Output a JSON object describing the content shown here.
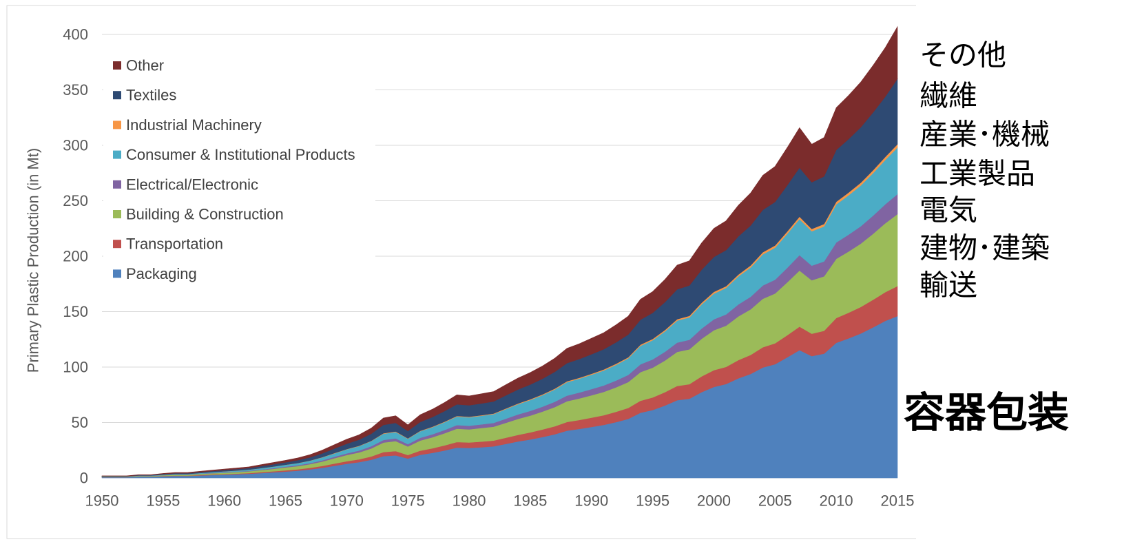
{
  "chart_data": {
    "type": "area",
    "stacked": true,
    "ylabel": "Primary Plastic Production (in Mt)",
    "xlim": [
      1950,
      2015
    ],
    "ylim": [
      0,
      400
    ],
    "grid": true,
    "legend": "top-left",
    "x_tick_labels": [
      "1950",
      "1955",
      "1960",
      "1965",
      "1970",
      "1975",
      "1980",
      "1985",
      "1990",
      "1995",
      "2000",
      "2005",
      "2010",
      "2015"
    ],
    "y_tick_labels": [
      "0",
      "50",
      "100",
      "150",
      "200",
      "250",
      "300",
      "350",
      "400"
    ],
    "x": [
      1950,
      1951,
      1952,
      1953,
      1954,
      1955,
      1956,
      1957,
      1958,
      1959,
      1960,
      1961,
      1962,
      1963,
      1964,
      1965,
      1966,
      1967,
      1968,
      1969,
      1970,
      1971,
      1972,
      1973,
      1974,
      1975,
      1976,
      1977,
      1978,
      1979,
      1980,
      1981,
      1982,
      1983,
      1984,
      1985,
      1986,
      1987,
      1988,
      1989,
      1990,
      1991,
      1992,
      1993,
      1994,
      1995,
      1996,
      1997,
      1998,
      1999,
      2000,
      2001,
      2002,
      2003,
      2004,
      2005,
      2006,
      2007,
      2008,
      2009,
      2010,
      2011,
      2012,
      2013,
      2014,
      2015
    ],
    "series": [
      {
        "name": "Packaging",
        "color": "#4F81BD",
        "values": [
          0.7,
          0.7,
          0.7,
          1.1,
          1.1,
          1.5,
          1.8,
          1.8,
          2.2,
          2.6,
          2.9,
          3.3,
          3.7,
          4.4,
          5.1,
          5.8,
          6.6,
          7.7,
          9.1,
          11.0,
          12.8,
          14.2,
          16.4,
          19.7,
          20.4,
          17.5,
          20.8,
          22.6,
          24.8,
          27.4,
          27.0,
          27.7,
          28.5,
          30.7,
          32.9,
          34.7,
          36.9,
          39.4,
          42.7,
          44.2,
          46.0,
          47.8,
          50.4,
          53.3,
          58.8,
          61.3,
          65.3,
          70.1,
          71.5,
          77.4,
          82.1,
          84.7,
          89.8,
          93.8,
          99.6,
          102.6,
          108.8,
          115.3,
          109.9,
          112.1,
          121.9,
          125.9,
          130.3,
          135.8,
          141.6,
          146
        ]
      },
      {
        "name": "Transportation",
        "color": "#C0504D",
        "values": [
          0.1,
          0.1,
          0.1,
          0.2,
          0.2,
          0.3,
          0.3,
          0.3,
          0.4,
          0.5,
          0.5,
          0.6,
          0.7,
          0.8,
          0.9,
          1.1,
          1.2,
          1.4,
          1.7,
          2.0,
          2.3,
          2.6,
          3.0,
          3.6,
          3.8,
          3.2,
          3.8,
          4.2,
          4.6,
          5.0,
          5.0,
          5.1,
          5.2,
          5.6,
          6.0,
          6.4,
          6.8,
          7.2,
          7.8,
          8.1,
          8.4,
          8.8,
          9.2,
          9.8,
          10.8,
          11.3,
          12.0,
          12.9,
          13.1,
          14.2,
          15.1,
          15.5,
          16.5,
          17.2,
          18.3,
          18.8,
          20.0,
          21.2,
          20.2,
          20.6,
          22.4,
          23.1,
          23.9,
          24.9,
          26.0,
          27
        ]
      },
      {
        "name": "Building & Construction",
        "color": "#9BBB59",
        "values": [
          0.3,
          0.3,
          0.3,
          0.5,
          0.5,
          0.6,
          0.8,
          0.8,
          1.0,
          1.1,
          1.3,
          1.4,
          1.6,
          1.9,
          2.2,
          2.6,
          2.9,
          3.4,
          4.0,
          4.8,
          5.6,
          6.2,
          7.2,
          8.6,
          9.0,
          7.7,
          9.1,
          9.9,
          10.9,
          12.0,
          11.8,
          12.2,
          12.5,
          13.4,
          14.4,
          15.2,
          16.2,
          17.3,
          18.7,
          19.4,
          20.2,
          21.0,
          22.1,
          23.4,
          25.8,
          26.9,
          28.6,
          30.7,
          31.4,
          33.9,
          36.0,
          37.1,
          39.4,
          41.1,
          43.7,
          45.0,
          47.7,
          50.6,
          48.2,
          49.1,
          53.4,
          55.2,
          57.1,
          59.5,
          62.1,
          65
        ]
      },
      {
        "name": "Electrical/Electronic",
        "color": "#8064A2",
        "values": [
          0.1,
          0.1,
          0.1,
          0.1,
          0.1,
          0.2,
          0.2,
          0.2,
          0.3,
          0.3,
          0.4,
          0.4,
          0.4,
          0.5,
          0.6,
          0.7,
          0.8,
          0.9,
          1.1,
          1.3,
          1.5,
          1.7,
          2.0,
          2.4,
          2.5,
          2.1,
          2.5,
          2.7,
          3.0,
          3.3,
          3.3,
          3.3,
          3.4,
          3.7,
          4.0,
          4.2,
          4.4,
          4.8,
          5.1,
          5.3,
          5.5,
          5.8,
          6.1,
          6.4,
          7.1,
          7.4,
          7.9,
          8.4,
          8.6,
          9.3,
          9.9,
          10.2,
          10.8,
          11.3,
          12.0,
          12.4,
          13.1,
          13.9,
          13.2,
          13.5,
          14.7,
          15.2,
          15.7,
          16.4,
          17.1,
          18
        ]
      },
      {
        "name": "Consumer & Institutional Products",
        "color": "#4BACC6",
        "values": [
          0.2,
          0.2,
          0.2,
          0.3,
          0.3,
          0.4,
          0.5,
          0.5,
          0.6,
          0.7,
          0.8,
          0.9,
          1.0,
          1.2,
          1.4,
          1.6,
          1.9,
          2.2,
          2.6,
          3.1,
          3.6,
          4.0,
          4.6,
          5.6,
          5.8,
          4.9,
          5.9,
          6.4,
          7.0,
          7.7,
          7.6,
          7.8,
          8.0,
          8.7,
          9.3,
          9.8,
          10.4,
          11.1,
          12.1,
          12.5,
          13.0,
          13.5,
          14.2,
          15.0,
          16.6,
          17.3,
          18.4,
          19.8,
          20.2,
          21.8,
          23.2,
          23.9,
          25.3,
          26.5,
          28.1,
          28.9,
          30.7,
          32.5,
          31.0,
          31.6,
          34.4,
          35.5,
          36.8,
          38.3,
          40.0,
          42
        ]
      },
      {
        "name": "Industrial Machinery",
        "color": "#F79646",
        "values": [
          0.0,
          0.0,
          0.0,
          0.0,
          0.0,
          0.0,
          0.0,
          0.0,
          0.0,
          0.0,
          0.1,
          0.1,
          0.1,
          0.1,
          0.1,
          0.1,
          0.1,
          0.1,
          0.2,
          0.2,
          0.2,
          0.3,
          0.3,
          0.4,
          0.4,
          0.3,
          0.4,
          0.4,
          0.5,
          0.5,
          0.5,
          0.5,
          0.5,
          0.6,
          0.6,
          0.7,
          0.7,
          0.8,
          0.8,
          0.8,
          0.9,
          0.9,
          1.0,
          1.0,
          1.1,
          1.2,
          1.3,
          1.3,
          1.4,
          1.5,
          1.6,
          1.6,
          1.7,
          1.8,
          1.9,
          2.0,
          2.1,
          2.2,
          2.1,
          2.1,
          2.3,
          2.4,
          2.5,
          2.6,
          2.7,
          3
        ]
      },
      {
        "name": "Textiles",
        "color": "#2E4A73",
        "values": [
          0.3,
          0.3,
          0.3,
          0.4,
          0.4,
          0.6,
          0.7,
          0.7,
          0.8,
          1.0,
          1.1,
          1.3,
          1.4,
          1.7,
          2.0,
          2.2,
          2.5,
          2.9,
          3.5,
          4.2,
          4.9,
          5.5,
          6.3,
          7.6,
          7.8,
          6.7,
          8.0,
          8.7,
          9.5,
          10.5,
          10.4,
          10.6,
          10.9,
          11.8,
          12.6,
          13.3,
          14.1,
          15.1,
          16.4,
          16.9,
          17.6,
          18.3,
          19.3,
          20.4,
          22.5,
          23.5,
          25.1,
          26.9,
          27.4,
          29.7,
          31.5,
          32.5,
          34.4,
          36.0,
          38.2,
          39.3,
          41.7,
          44.2,
          42.1,
          43.0,
          46.8,
          48.3,
          50.0,
          52.1,
          54.3,
          59
        ]
      },
      {
        "name": "Other",
        "color": "#7B2C2C",
        "values": [
          0.2,
          0.2,
          0.2,
          0.3,
          0.3,
          0.5,
          0.6,
          0.6,
          0.7,
          0.8,
          0.9,
          1.0,
          1.1,
          1.4,
          1.6,
          1.8,
          2.1,
          2.4,
          2.9,
          3.4,
          4.0,
          4.4,
          5.1,
          6.2,
          6.4,
          5.5,
          6.5,
          7.1,
          7.8,
          8.6,
          8.4,
          8.7,
          8.9,
          9.6,
          10.3,
          10.8,
          11.5,
          12.3,
          13.3,
          13.8,
          14.4,
          14.9,
          15.7,
          16.6,
          18.4,
          19.2,
          20.4,
          21.9,
          22.3,
          24.2,
          25.7,
          26.4,
          28.0,
          29.3,
          31.1,
          32.0,
          34.0,
          36.0,
          34.3,
          35.0,
          38.1,
          39.3,
          40.7,
          42.4,
          44.2,
          47
        ]
      }
    ],
    "annotations": [
      "その他",
      "繊維",
      "産業･機械",
      "工業製品",
      "電気",
      "建物･建築",
      "輸送",
      "容器包装"
    ]
  }
}
